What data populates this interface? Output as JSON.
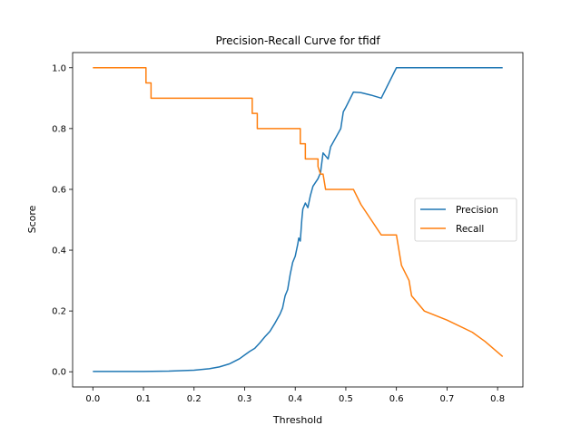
{
  "chart_data": {
    "type": "line",
    "title": "Precision-Recall Curve for tfidf",
    "xlabel": "Threshold",
    "ylabel": "Score",
    "xlim": [
      -0.04,
      0.85
    ],
    "ylim": [
      -0.05,
      1.05
    ],
    "xticks": [
      0.0,
      0.1,
      0.2,
      0.3,
      0.4,
      0.5,
      0.6,
      0.7,
      0.8
    ],
    "xtick_labels": [
      "0.0",
      "0.1",
      "0.2",
      "0.3",
      "0.4",
      "0.5",
      "0.6",
      "0.7",
      "0.8"
    ],
    "yticks": [
      0.0,
      0.2,
      0.4,
      0.6,
      0.8,
      1.0
    ],
    "ytick_labels": [
      "0.0",
      "0.2",
      "0.4",
      "0.6",
      "0.8",
      "1.0"
    ],
    "legend_position": "center-right",
    "grid": false,
    "series": [
      {
        "name": "Precision",
        "color": "#1f77b4",
        "points": [
          [
            0.0,
            0.001
          ],
          [
            0.1,
            0.001
          ],
          [
            0.15,
            0.002
          ],
          [
            0.2,
            0.005
          ],
          [
            0.23,
            0.01
          ],
          [
            0.25,
            0.016
          ],
          [
            0.27,
            0.026
          ],
          [
            0.29,
            0.043
          ],
          [
            0.3,
            0.055
          ],
          [
            0.31,
            0.067
          ],
          [
            0.32,
            0.077
          ],
          [
            0.325,
            0.086
          ],
          [
            0.33,
            0.095
          ],
          [
            0.34,
            0.115
          ],
          [
            0.35,
            0.133
          ],
          [
            0.36,
            0.16
          ],
          [
            0.37,
            0.19
          ],
          [
            0.375,
            0.21
          ],
          [
            0.38,
            0.25
          ],
          [
            0.385,
            0.27
          ],
          [
            0.39,
            0.32
          ],
          [
            0.395,
            0.36
          ],
          [
            0.4,
            0.38
          ],
          [
            0.405,
            0.42
          ],
          [
            0.407,
            0.44
          ],
          [
            0.41,
            0.43
          ],
          [
            0.413,
            0.5
          ],
          [
            0.415,
            0.535
          ],
          [
            0.42,
            0.555
          ],
          [
            0.425,
            0.54
          ],
          [
            0.43,
            0.58
          ],
          [
            0.435,
            0.61
          ],
          [
            0.445,
            0.635
          ],
          [
            0.45,
            0.655
          ],
          [
            0.455,
            0.72
          ],
          [
            0.46,
            0.71
          ],
          [
            0.465,
            0.7
          ],
          [
            0.47,
            0.74
          ],
          [
            0.48,
            0.77
          ],
          [
            0.49,
            0.8
          ],
          [
            0.495,
            0.855
          ],
          [
            0.5,
            0.87
          ],
          [
            0.515,
            0.92
          ],
          [
            0.53,
            0.918
          ],
          [
            0.55,
            0.91
          ],
          [
            0.57,
            0.9
          ],
          [
            0.6,
            1.0
          ],
          [
            0.81,
            1.0
          ]
        ]
      },
      {
        "name": "Recall",
        "color": "#ff7f0e",
        "points": [
          [
            0.0,
            1.0
          ],
          [
            0.105,
            1.0
          ],
          [
            0.105,
            0.95
          ],
          [
            0.115,
            0.95
          ],
          [
            0.115,
            0.9
          ],
          [
            0.315,
            0.9
          ],
          [
            0.315,
            0.85
          ],
          [
            0.325,
            0.85
          ],
          [
            0.325,
            0.8
          ],
          [
            0.41,
            0.8
          ],
          [
            0.41,
            0.75
          ],
          [
            0.42,
            0.75
          ],
          [
            0.42,
            0.7
          ],
          [
            0.445,
            0.7
          ],
          [
            0.445,
            0.675
          ],
          [
            0.45,
            0.65
          ],
          [
            0.455,
            0.65
          ],
          [
            0.46,
            0.6
          ],
          [
            0.515,
            0.6
          ],
          [
            0.53,
            0.55
          ],
          [
            0.55,
            0.5
          ],
          [
            0.57,
            0.45
          ],
          [
            0.6,
            0.45
          ],
          [
            0.61,
            0.35
          ],
          [
            0.625,
            0.3
          ],
          [
            0.63,
            0.25
          ],
          [
            0.655,
            0.2
          ],
          [
            0.7,
            0.17
          ],
          [
            0.75,
            0.13
          ],
          [
            0.775,
            0.1
          ],
          [
            0.81,
            0.05
          ]
        ]
      }
    ]
  }
}
